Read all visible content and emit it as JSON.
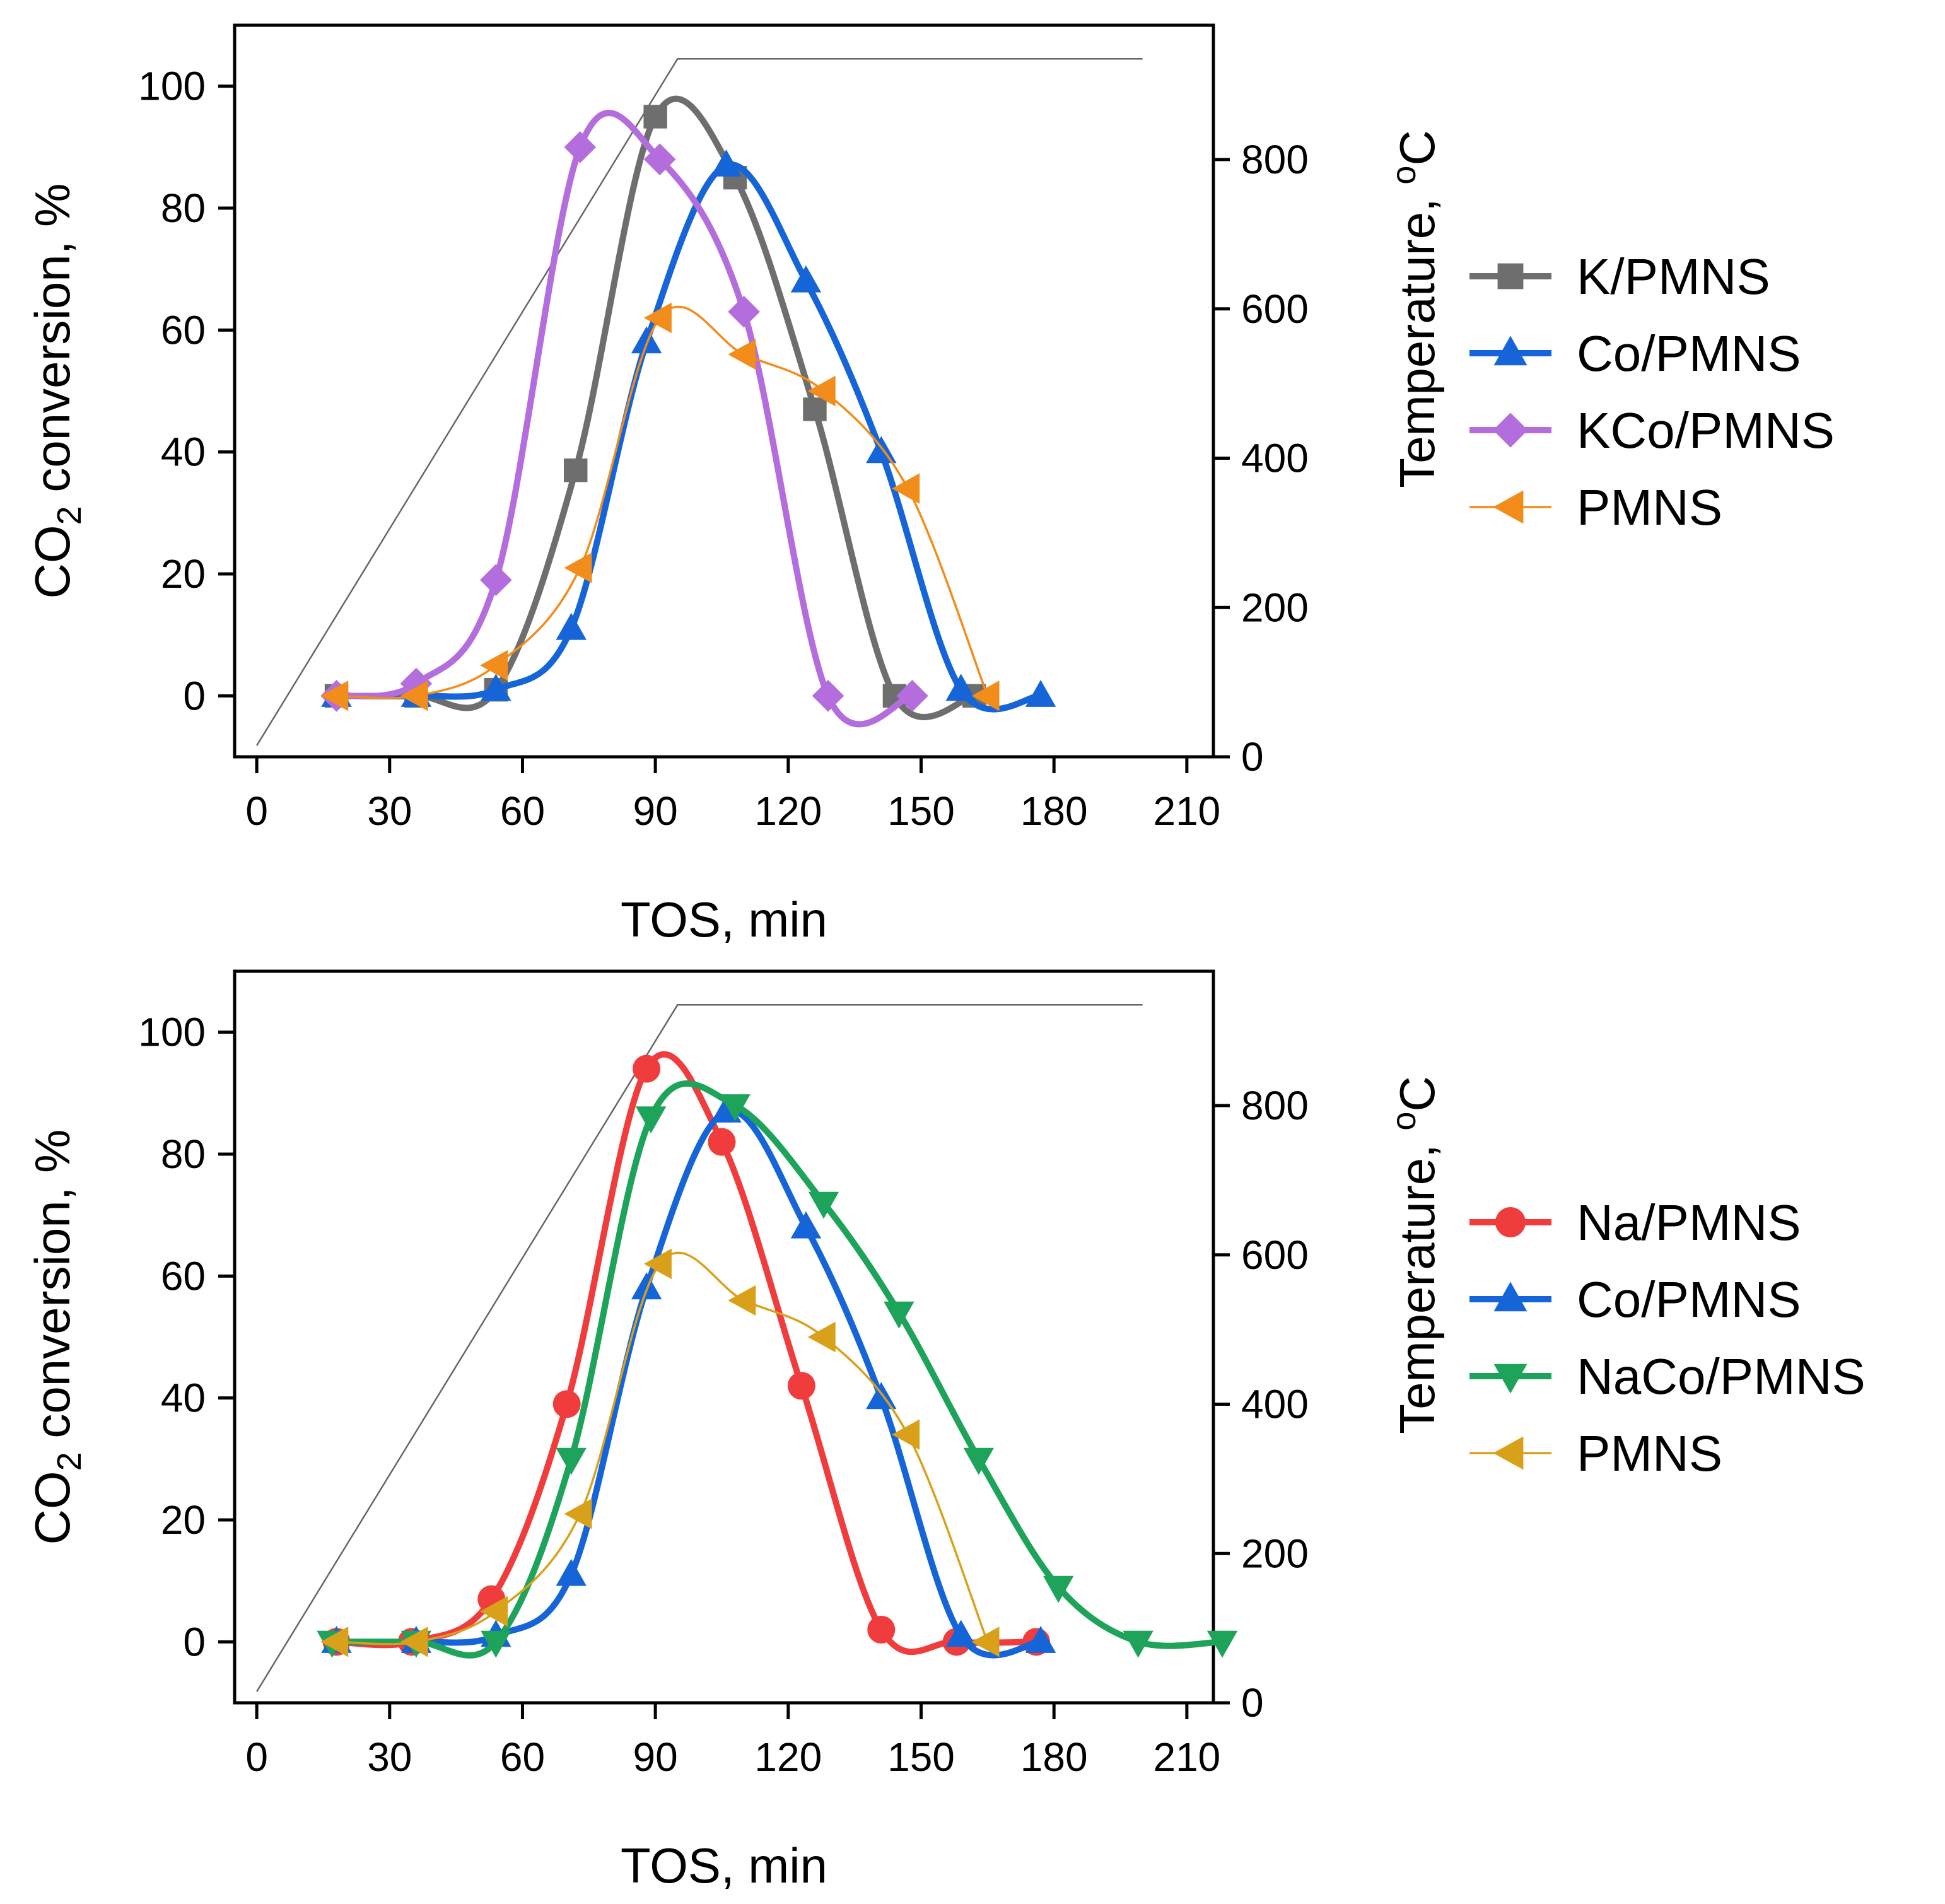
{
  "chart_data": [
    {
      "type": "line",
      "panel": "top",
      "xlabel": "TOS, min",
      "ylabel_left": [
        "CO",
        "2",
        " conversion, %"
      ],
      "ylabel_right": [
        "Temperature, ",
        "o",
        "C"
      ],
      "xlim": [
        -5,
        216
      ],
      "ylim_left": [
        -10,
        110
      ],
      "ylim_right": [
        0,
        980
      ],
      "xticks": [
        "0",
        "30",
        "60",
        "90",
        "120",
        "150",
        "180",
        "210"
      ],
      "yticks_left": [
        "0",
        "20",
        "40",
        "60",
        "80",
        "100"
      ],
      "yticks_right": [
        "0",
        "200",
        "400",
        "600",
        "800"
      ],
      "temperature_profile": {
        "x": [
          0,
          95,
          200
        ],
        "y": [
          15,
          935,
          935
        ]
      },
      "series": [
        {
          "name": "K/PMNS",
          "color": "#6e6e6e",
          "marker": "square",
          "thick": true,
          "x": [
            18,
            36,
            54,
            72,
            90,
            108,
            126,
            144,
            162
          ],
          "y": [
            0,
            0,
            1,
            37,
            95,
            85,
            47,
            0,
            0
          ]
        },
        {
          "name": "Co/PMNS",
          "color": "#1565d8",
          "marker": "triangle-up",
          "thick": true,
          "x": [
            18,
            36,
            54,
            71,
            88,
            106,
            124,
            141,
            159,
            177
          ],
          "y": [
            0,
            0,
            1,
            11,
            58,
            87,
            68,
            40,
            1,
            0
          ]
        },
        {
          "name": "KCo/PMNS",
          "color": "#b36ddd",
          "marker": "diamond",
          "thick": true,
          "x": [
            18,
            36,
            54,
            73,
            91,
            110,
            129,
            148
          ],
          "y": [
            0,
            2,
            19,
            90,
            88,
            63,
            0,
            0
          ]
        },
        {
          "name": "PMNS",
          "color": "#f28c1a",
          "marker": "triangle-left",
          "thick": false,
          "x": [
            18,
            36,
            54,
            73,
            91,
            110,
            128,
            147,
            165
          ],
          "y": [
            0,
            0,
            5,
            21,
            62,
            56,
            50,
            34,
            0
          ]
        }
      ]
    },
    {
      "type": "line",
      "panel": "bottom",
      "xlabel": "TOS, min",
      "ylabel_left": [
        "CO",
        "2",
        " conversion, %"
      ],
      "ylabel_right": [
        "Temperature, ",
        "o",
        "C"
      ],
      "xlim": [
        -5,
        216
      ],
      "ylim_left": [
        -10,
        110
      ],
      "ylim_right": [
        0,
        980
      ],
      "xticks": [
        "0",
        "30",
        "60",
        "90",
        "120",
        "150",
        "180",
        "210"
      ],
      "yticks_left": [
        "0",
        "20",
        "40",
        "60",
        "80",
        "100"
      ],
      "yticks_right": [
        "0",
        "200",
        "400",
        "600",
        "800"
      ],
      "temperature_profile": {
        "x": [
          0,
          95,
          200
        ],
        "y": [
          15,
          935,
          935
        ]
      },
      "series": [
        {
          "name": "Na/PMNS",
          "color": "#f03c3c",
          "marker": "circle",
          "thick": true,
          "x": [
            18,
            35,
            53,
            70,
            88,
            105,
            123,
            141,
            158,
            176
          ],
          "y": [
            0,
            0,
            7,
            39,
            94,
            82,
            42,
            2,
            0,
            0
          ]
        },
        {
          "name": "Co/PMNS",
          "color": "#1565d8",
          "marker": "triangle-up",
          "thick": true,
          "x": [
            18,
            36,
            54,
            71,
            88,
            106,
            124,
            141,
            159,
            177
          ],
          "y": [
            0,
            0,
            1,
            11,
            58,
            87,
            68,
            40,
            1,
            0
          ]
        },
        {
          "name": "NaCo/PMNS",
          "color": "#1ea35a",
          "marker": "triangle-down",
          "thick": true,
          "x": [
            17,
            36,
            54,
            71,
            89,
            108,
            128,
            145,
            163,
            181,
            199,
            218
          ],
          "y": [
            0,
            0,
            0,
            30,
            86,
            88,
            72,
            54,
            30,
            9,
            0,
            0
          ]
        },
        {
          "name": "PMNS",
          "color": "#d9a11a",
          "marker": "triangle-left",
          "thick": false,
          "x": [
            18,
            36,
            54,
            73,
            91,
            110,
            128,
            147,
            165
          ],
          "y": [
            0,
            0,
            5,
            21,
            62,
            56,
            50,
            34,
            0
          ]
        }
      ]
    }
  ]
}
